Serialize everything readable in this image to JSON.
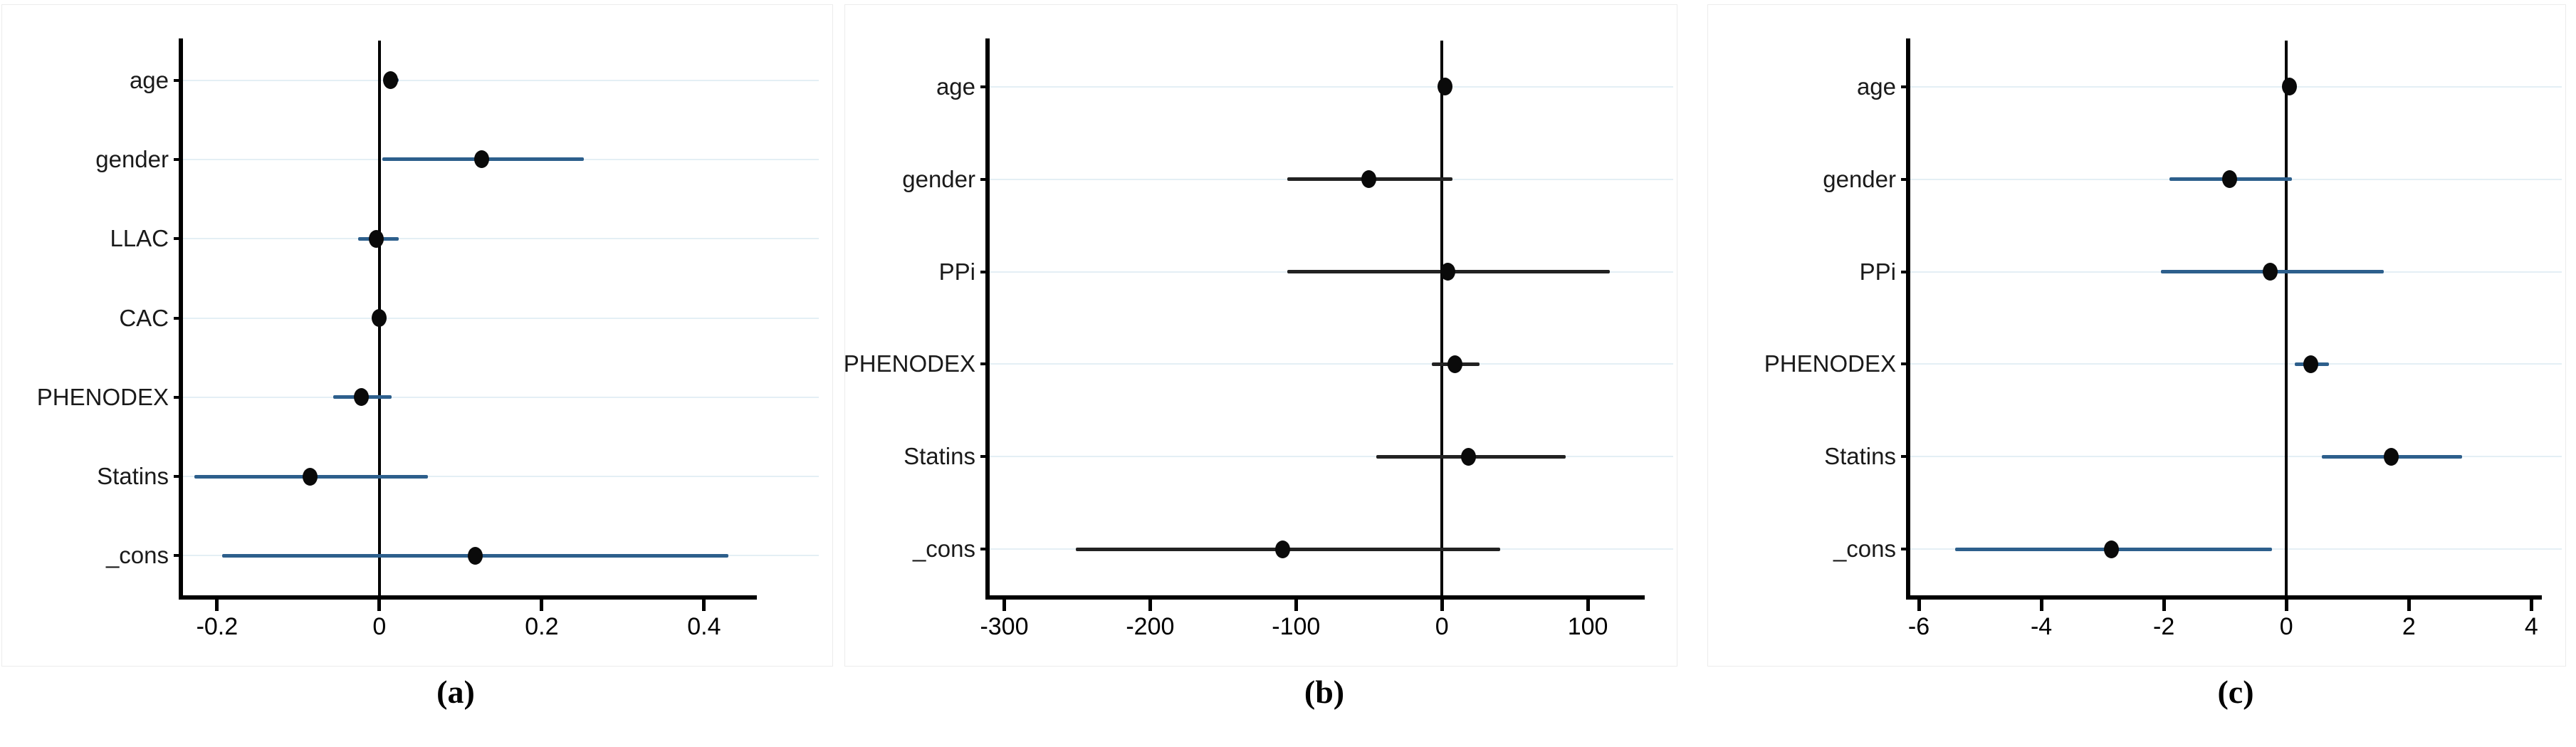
{
  "figure": {
    "background": "#ffffff",
    "panel_background": "#ffffff",
    "panel_border_color": "#ececec",
    "grid_color": "#e4eff5",
    "axis_color": "#000000",
    "zero_line_color": "#000000",
    "dot_color": "#0a0a0a",
    "text_color": "#1a1a1a"
  },
  "chart_data": [
    {
      "type": "scatter",
      "subtype": "forest-coefficient-plot",
      "caption": "(a)",
      "title": "",
      "xlabel": "",
      "ylabel": "",
      "grid": true,
      "legend": "none",
      "zero_line": 0,
      "ci_color": "#2d5f8c",
      "categories": [
        "age",
        "gender",
        "LLAC",
        "CAC",
        "PHENODEX",
        "Statins",
        "_cons"
      ],
      "points": [
        {
          "label": "age",
          "est": 0.014,
          "lo": 0.006,
          "hi": 0.024
        },
        {
          "label": "gender",
          "est": 0.126,
          "lo": 0.004,
          "hi": 0.252
        },
        {
          "label": "LLAC",
          "est": -0.004,
          "lo": -0.026,
          "hi": 0.024
        },
        {
          "label": "CAC",
          "est": 0.0,
          "lo": -0.007,
          "hi": 0.007
        },
        {
          "label": "PHENODEX",
          "est": -0.022,
          "lo": -0.057,
          "hi": 0.015
        },
        {
          "label": "Statins",
          "est": -0.085,
          "lo": -0.228,
          "hi": 0.06
        },
        {
          "label": "_cons",
          "est": 0.118,
          "lo": -0.194,
          "hi": 0.43
        }
      ],
      "x_ticks": [
        -0.2,
        0,
        0.2,
        0.4
      ],
      "x_tick_labels": [
        "-0.2",
        "0",
        "0.2",
        "0.4"
      ],
      "xlim": [
        -0.242,
        0.465
      ]
    },
    {
      "type": "scatter",
      "subtype": "forest-coefficient-plot",
      "caption": "(b)",
      "title": "",
      "xlabel": "",
      "ylabel": "",
      "grid": true,
      "legend": "none",
      "zero_line": 0,
      "ci_color": "#222222",
      "categories": [
        "age",
        "gender",
        "PPi",
        "PHENODEX",
        "Statins",
        "_cons"
      ],
      "points": [
        {
          "label": "age",
          "est": 2,
          "lo": -2,
          "hi": 6
        },
        {
          "label": "gender",
          "est": -50,
          "lo": -106,
          "hi": 7
        },
        {
          "label": "PPi",
          "est": 4,
          "lo": -106,
          "hi": 115
        },
        {
          "label": "PHENODEX",
          "est": 9,
          "lo": -7,
          "hi": 26
        },
        {
          "label": "Statins",
          "est": 18,
          "lo": -45,
          "hi": 85
        },
        {
          "label": "_cons",
          "est": -109,
          "lo": -251,
          "hi": 40
        }
      ],
      "x_ticks": [
        -300,
        -200,
        -100,
        0,
        100
      ],
      "x_tick_labels": [
        "-300",
        "-200",
        "-100",
        "0",
        "100"
      ],
      "xlim": [
        -310,
        139
      ]
    },
    {
      "type": "scatter",
      "subtype": "forest-coefficient-plot",
      "caption": "(c)",
      "title": "",
      "xlabel": "",
      "ylabel": "",
      "grid": true,
      "legend": "none",
      "zero_line": 0,
      "ci_color": "#2d5f8c",
      "categories": [
        "age",
        "gender",
        "PPi",
        "PHENODEX",
        "Statins",
        "_cons"
      ],
      "points": [
        {
          "label": "age",
          "est": 0.05,
          "lo": -0.06,
          "hi": 0.16
        },
        {
          "label": "gender",
          "est": -0.93,
          "lo": -1.91,
          "hi": 0.09
        },
        {
          "label": "PPi",
          "est": -0.26,
          "lo": -2.05,
          "hi": 1.59
        },
        {
          "label": "PHENODEX",
          "est": 0.4,
          "lo": 0.14,
          "hi": 0.69
        },
        {
          "label": "Statins",
          "est": 1.71,
          "lo": 0.58,
          "hi": 2.87
        },
        {
          "label": "_cons",
          "est": -2.86,
          "lo": -5.41,
          "hi": -0.23
        }
      ],
      "x_ticks": [
        -6,
        -4,
        -2,
        0,
        2,
        4
      ],
      "x_tick_labels": [
        "-6",
        "-4",
        "-2",
        "0",
        "2",
        "4"
      ],
      "xlim": [
        -6.14,
        4.17
      ]
    }
  ]
}
